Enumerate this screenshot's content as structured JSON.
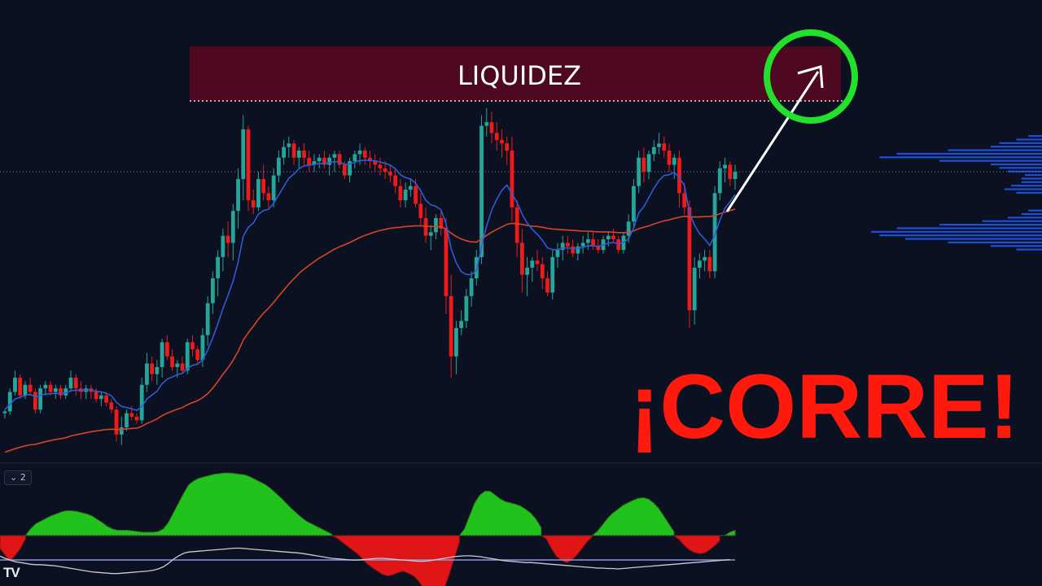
{
  "title_overlay": {
    "text": "¡CORRE!",
    "color": "#ff1a0d"
  },
  "liquidity_zone": {
    "label": "LIQUIDEZ",
    "fill": "#4e0820",
    "line_color": "#e6e6e6"
  },
  "target_circle_color": "#22e02b",
  "indicator_pane": {
    "badge": "⌄ 2"
  },
  "logo": {
    "text": "TV"
  },
  "colors": {
    "bull": "#26a69a",
    "bear": "#ef1a1a",
    "ema_fast": "#2f5bd8",
    "ema_slow": "#d8442a",
    "hist_pos": "#22c21c",
    "hist_neg": "#e01515",
    "osc_line": "#c8ccd6",
    "osc_ref": "#7e9bd8",
    "volume_profile": "#1e4fd8"
  },
  "chart_data": {
    "type": "candlestick",
    "x": [],
    "xlabel": "",
    "ylabel": "",
    "ylim": [
      0,
      100
    ],
    "candles": [
      [
        12,
        13,
        10.5,
        12.5
      ],
      [
        12.5,
        19,
        11.5,
        18
      ],
      [
        18,
        24,
        17,
        22
      ],
      [
        22,
        23,
        16,
        17
      ],
      [
        17,
        21,
        16,
        20
      ],
      [
        20,
        22,
        17,
        18
      ],
      [
        18,
        19,
        12,
        13
      ],
      [
        13,
        20,
        12,
        19
      ],
      [
        19,
        21,
        17,
        20
      ],
      [
        20,
        21,
        17,
        18
      ],
      [
        18,
        20,
        16,
        19
      ],
      [
        19,
        20,
        16,
        17
      ],
      [
        17,
        20,
        16,
        19
      ],
      [
        19,
        24,
        18,
        22
      ],
      [
        22,
        23,
        17,
        19
      ],
      [
        19,
        21,
        16,
        18
      ],
      [
        18,
        20,
        16,
        19
      ],
      [
        19,
        20,
        16,
        18
      ],
      [
        18,
        19,
        15,
        16
      ],
      [
        16,
        18,
        14,
        17
      ],
      [
        17,
        18,
        14,
        15
      ],
      [
        15,
        16,
        12,
        13
      ],
      [
        13,
        14,
        4,
        6
      ],
      [
        6,
        11,
        3,
        8
      ],
      [
        8,
        13,
        7,
        12
      ],
      [
        12,
        14,
        10,
        11
      ],
      [
        11,
        12,
        9,
        10
      ],
      [
        10,
        22,
        9,
        20
      ],
      [
        20,
        29,
        18,
        26
      ],
      [
        26,
        28,
        21,
        23
      ],
      [
        23,
        27,
        20,
        25
      ],
      [
        25,
        33,
        22,
        32
      ],
      [
        32,
        34,
        27,
        28
      ],
      [
        28,
        30,
        24,
        25
      ],
      [
        25,
        27,
        22,
        26
      ],
      [
        26,
        28,
        23,
        24
      ],
      [
        24,
        33,
        23,
        32
      ],
      [
        32,
        34,
        28,
        30
      ],
      [
        30,
        31,
        26,
        27
      ],
      [
        27,
        36,
        25,
        34
      ],
      [
        34,
        45,
        31,
        43
      ],
      [
        43,
        52,
        40,
        50
      ],
      [
        50,
        58,
        45,
        56
      ],
      [
        56,
        64,
        52,
        62
      ],
      [
        62,
        66,
        56,
        60
      ],
      [
        60,
        71,
        55,
        69
      ],
      [
        69,
        81,
        64,
        78
      ],
      [
        78,
        96,
        72,
        92
      ],
      [
        92,
        93,
        69,
        72
      ],
      [
        72,
        75,
        68,
        70
      ],
      [
        70,
        80,
        69,
        78
      ],
      [
        78,
        82,
        72,
        74
      ],
      [
        74,
        76,
        70,
        72
      ],
      [
        72,
        81,
        70,
        79
      ],
      [
        79,
        86,
        77,
        84
      ],
      [
        84,
        89,
        82,
        87
      ],
      [
        87,
        90,
        84,
        88
      ],
      [
        88,
        89,
        82,
        84
      ],
      [
        84,
        87,
        81,
        86
      ],
      [
        86,
        88,
        82,
        84
      ],
      [
        84,
        86,
        80,
        82
      ],
      [
        82,
        85,
        80,
        83
      ],
      [
        83,
        85,
        81,
        84
      ],
      [
        84,
        86,
        81,
        82
      ],
      [
        82,
        85,
        79,
        84
      ],
      [
        84,
        86,
        80,
        85
      ],
      [
        85,
        86,
        81,
        82
      ],
      [
        82,
        83,
        78,
        79
      ],
      [
        79,
        84,
        77,
        83
      ],
      [
        83,
        86,
        81,
        85
      ],
      [
        85,
        88,
        82,
        86
      ],
      [
        86,
        87,
        82,
        84
      ],
      [
        84,
        86,
        81,
        83
      ],
      [
        83,
        85,
        80,
        82
      ],
      [
        82,
        84,
        79,
        81
      ],
      [
        81,
        83,
        78,
        80
      ],
      [
        80,
        82,
        77,
        79
      ],
      [
        79,
        81,
        74,
        76
      ],
      [
        76,
        78,
        70,
        72
      ],
      [
        72,
        77,
        70,
        75
      ],
      [
        75,
        78,
        73,
        76
      ],
      [
        76,
        78,
        70,
        71
      ],
      [
        71,
        74,
        65,
        67
      ],
      [
        67,
        70,
        60,
        62
      ],
      [
        62,
        65,
        58,
        63
      ],
      [
        63,
        68,
        61,
        67
      ],
      [
        67,
        69,
        62,
        64
      ],
      [
        64,
        67,
        40,
        45
      ],
      [
        45,
        51,
        22,
        28
      ],
      [
        28,
        38,
        23,
        36
      ],
      [
        36,
        41,
        34,
        38
      ],
      [
        38,
        47,
        36,
        45
      ],
      [
        45,
        52,
        42,
        50
      ],
      [
        50,
        58,
        48,
        56
      ],
      [
        56,
        96,
        54,
        93
      ],
      [
        93,
        98,
        90,
        94
      ],
      [
        94,
        97,
        88,
        91
      ],
      [
        91,
        94,
        86,
        89
      ],
      [
        89,
        92,
        84,
        88
      ],
      [
        88,
        90,
        82,
        86
      ],
      [
        86,
        90,
        66,
        70
      ],
      [
        70,
        72,
        56,
        60
      ],
      [
        60,
        64,
        46,
        51
      ],
      [
        51,
        56,
        45,
        53
      ],
      [
        53,
        56,
        49,
        55
      ],
      [
        55,
        58,
        52,
        54
      ],
      [
        54,
        56,
        47,
        50
      ],
      [
        50,
        52,
        45,
        46
      ],
      [
        46,
        58,
        44,
        56
      ],
      [
        56,
        60,
        53,
        58
      ],
      [
        58,
        62,
        55,
        60
      ],
      [
        60,
        62,
        57,
        59
      ],
      [
        59,
        61,
        56,
        57
      ],
      [
        57,
        60,
        55,
        59
      ],
      [
        59,
        62,
        57,
        60
      ],
      [
        60,
        63,
        58,
        61
      ],
      [
        61,
        63,
        58,
        59
      ],
      [
        59,
        61,
        57,
        58
      ],
      [
        58,
        62,
        57,
        61
      ],
      [
        61,
        63,
        59,
        62
      ],
      [
        62,
        64,
        60,
        61
      ],
      [
        61,
        62,
        57,
        58
      ],
      [
        58,
        63,
        57,
        62
      ],
      [
        62,
        68,
        60,
        66
      ],
      [
        66,
        78,
        64,
        76
      ],
      [
        76,
        86,
        74,
        84
      ],
      [
        84,
        87,
        77,
        80
      ],
      [
        80,
        86,
        78,
        85
      ],
      [
        85,
        89,
        83,
        87
      ],
      [
        87,
        91,
        85,
        88
      ],
      [
        88,
        90,
        84,
        86
      ],
      [
        86,
        88,
        80,
        82
      ],
      [
        82,
        85,
        78,
        84
      ],
      [
        84,
        86,
        70,
        74
      ],
      [
        74,
        77,
        68,
        70
      ],
      [
        70,
        72,
        36,
        41
      ],
      [
        41,
        56,
        37,
        53
      ],
      [
        53,
        57,
        50,
        55
      ],
      [
        55,
        58,
        52,
        56
      ],
      [
        56,
        58,
        50,
        52
      ],
      [
        52,
        76,
        50,
        74
      ],
      [
        74,
        83,
        72,
        81
      ],
      [
        81,
        84,
        77,
        82
      ],
      [
        82,
        83,
        76,
        78
      ],
      [
        78,
        82,
        75,
        80
      ]
    ],
    "ema_fast": [
      13,
      14.5,
      16,
      16.5,
      17,
      17.3,
      16.6,
      17,
      17.4,
      17.5,
      17.6,
      17.5,
      17.7,
      18.3,
      18.5,
      18.4,
      18.5,
      18.5,
      18.2,
      18,
      17.6,
      16.9,
      15.1,
      13.9,
      13.6,
      13.2,
      12.8,
      13.8,
      16,
      17.1,
      18.2,
      20.3,
      21.6,
      22.2,
      22.9,
      23.2,
      24.6,
      25.5,
      25.8,
      27,
      29.8,
      33.3,
      37.2,
      41.5,
      45.2,
      49.2,
      54.6,
      61.9,
      64.4,
      65.6,
      68.1,
      69.1,
      69.5,
      71.1,
      73.5,
      75.9,
      78.2,
      79.4,
      80.9,
      81.7,
      81.9,
      82.1,
      82.4,
      82.3,
      82.6,
      82.9,
      82.8,
      82.1,
      82.2,
      82.7,
      83.2,
      83.3,
      83.3,
      83.1,
      82.8,
      82.4,
      81.9,
      80.9,
      79.2,
      78.4,
      78,
      76.8,
      74.7,
      72,
      70.7,
      70.3,
      69.3,
      65.4,
      58.3,
      54.4,
      51.9,
      51.1,
      51,
      52.2,
      58.9,
      64.8,
      69.2,
      72.3,
      74.8,
      76.3,
      73.8,
      71.4,
      68.1,
      65.6,
      63.8,
      62.4,
      60.7,
      58.6,
      58.1,
      58.1,
      58.5,
      58.6,
      58.4,
      58.5,
      58.7,
      59.2,
      59.2,
      59,
      59.4,
      59.9,
      60.1,
      59.7,
      60.1,
      61.2,
      64.2,
      68.4,
      70.2,
      72.8,
      75.4,
      77.6,
      79,
      79.2,
      79.9,
      78.3,
      76.2,
      68.5,
      65,
      62.6,
      61.1,
      59.3,
      62.2,
      66.4,
      69.8,
      71.6,
      73.6
    ],
    "ema_slow": [
      1,
      1.5,
      2,
      2.4,
      2.8,
      3.1,
      3.2,
      3.6,
      4,
      4.3,
      4.6,
      4.8,
      5.1,
      5.6,
      5.9,
      6.2,
      6.5,
      6.8,
      7,
      7.2,
      7.4,
      7.5,
      7.4,
      7.4,
      7.6,
      7.7,
      7.8,
      8.3,
      9.1,
      9.7,
      10.4,
      11.3,
      12,
      12.6,
      13.1,
      13.6,
      14.4,
      15,
      15.5,
      16.4,
      17.5,
      19.1,
      20.9,
      23,
      24.8,
      26.9,
      29.4,
      32.6,
      34.7,
      36.5,
      38.5,
      40.2,
      41.6,
      43.2,
      45,
      46.7,
      48.4,
      49.9,
      51.4,
      52.6,
      53.7,
      54.7,
      55.7,
      56.5,
      57.4,
      58.2,
      58.9,
      59.5,
      60.1,
      60.8,
      61.5,
      62.1,
      62.6,
      63.1,
      63.5,
      63.8,
      64.1,
      64.3,
      64.4,
      64.6,
      64.7,
      64.8,
      64.8,
      64.7,
      64.6,
      64.6,
      64.5,
      63.9,
      62.7,
      61.8,
      61.1,
      60.6,
      60.3,
      60.2,
      61.1,
      62.1,
      63,
      63.8,
      64.5,
      65.2,
      65.5,
      65.4,
      65.2,
      64.9,
      64.7,
      64.6,
      64.4,
      64.1,
      63.9,
      63.8,
      63.7,
      63.6,
      63.5,
      63.4,
      63.3,
      63.3,
      63.2,
      63.1,
      63.1,
      63.1,
      63,
      62.9,
      62.9,
      63,
      63.4,
      64,
      64.4,
      64.8,
      65.3,
      65.8,
      66.2,
      66.5,
      66.9,
      67.2,
      67.5,
      67.3,
      67.3,
      67.3,
      67.4,
      67.4,
      67.7,
      68.2,
      68.7,
      69.1,
      69.5
    ],
    "liquidity_level": 96,
    "current_price_line": 84,
    "histogram": [
      -0.2,
      -0.3,
      -0.4,
      -0.3,
      -0.2,
      -0.05,
      0.1,
      0.18,
      0.22,
      0.26,
      0.3,
      0.33,
      0.36,
      0.38,
      0.38,
      0.37,
      0.35,
      0.33,
      0.3,
      0.25,
      0.2,
      0.14,
      0.1,
      0.08,
      0.08,
      0.08,
      0.07,
      0.06,
      0.05,
      0.05,
      0.05,
      0.06,
      0.1,
      0.2,
      0.35,
      0.5,
      0.65,
      0.78,
      0.84,
      0.88,
      0.9,
      0.92,
      0.94,
      0.95,
      0.96,
      0.96,
      0.95,
      0.94,
      0.93,
      0.9,
      0.86,
      0.82,
      0.78,
      0.72,
      0.65,
      0.58,
      0.5,
      0.42,
      0.35,
      0.28,
      0.22,
      0.18,
      0.14,
      0.1,
      0.06,
      0.02,
      -0.04,
      -0.1,
      -0.16,
      -0.22,
      -0.28,
      -0.36,
      -0.44,
      -0.5,
      -0.55,
      -0.6,
      -0.62,
      -0.6,
      -0.57,
      -0.55,
      -0.58,
      -0.62,
      -0.7,
      -0.82,
      -0.95,
      -1,
      -0.96,
      -0.82,
      -0.6,
      -0.35,
      -0.1,
      0.1,
      0.3,
      0.5,
      0.62,
      0.68,
      0.68,
      0.62,
      0.56,
      0.52,
      0.5,
      0.48,
      0.45,
      0.4,
      0.34,
      0.25,
      0.12,
      -0.05,
      -0.2,
      -0.32,
      -0.38,
      -0.42,
      -0.38,
      -0.3,
      -0.2,
      -0.1,
      -0.02,
      0.06,
      0.16,
      0.26,
      0.34,
      0.4,
      0.46,
      0.5,
      0.54,
      0.57,
      0.58,
      0.56,
      0.5,
      0.42,
      0.3,
      0.18,
      0.06,
      -0.06,
      -0.15,
      -0.22,
      -0.26,
      -0.28,
      -0.27,
      -0.22,
      -0.16,
      -0.08,
      0.0,
      0.05,
      0.08
    ],
    "oscillator": [
      0.55,
      0.5,
      0.46,
      0.42,
      0.4,
      0.38,
      0.36,
      0.35,
      0.35,
      0.34,
      0.33,
      0.32,
      0.3,
      0.28,
      0.26,
      0.24,
      0.22,
      0.2,
      0.18,
      0.17,
      0.16,
      0.15,
      0.14,
      0.14,
      0.15,
      0.16,
      0.17,
      0.18,
      0.19,
      0.2,
      0.22,
      0.25,
      0.3,
      0.38,
      0.48,
      0.56,
      0.62,
      0.65,
      0.66,
      0.67,
      0.68,
      0.69,
      0.7,
      0.71,
      0.72,
      0.73,
      0.74,
      0.74,
      0.73,
      0.72,
      0.71,
      0.7,
      0.69,
      0.68,
      0.67,
      0.66,
      0.65,
      0.64,
      0.63,
      0.62,
      0.6,
      0.58,
      0.56,
      0.54,
      0.52,
      0.5,
      0.49,
      0.48,
      0.47,
      0.46,
      0.46,
      0.47,
      0.48,
      0.49,
      0.5,
      0.5,
      0.49,
      0.48,
      0.47,
      0.46,
      0.45,
      0.44,
      0.43,
      0.43,
      0.44,
      0.46,
      0.48,
      0.5,
      0.52,
      0.54,
      0.55,
      0.56,
      0.56,
      0.55,
      0.54,
      0.52,
      0.5,
      0.48,
      0.46,
      0.44,
      0.43,
      0.42,
      0.41,
      0.4,
      0.4,
      0.39,
      0.38,
      0.37,
      0.36,
      0.35,
      0.34,
      0.33,
      0.32,
      0.31,
      0.3,
      0.29,
      0.28,
      0.27,
      0.27,
      0.26,
      0.26,
      0.25,
      0.26,
      0.27,
      0.28,
      0.29,
      0.3,
      0.31,
      0.32,
      0.33,
      0.34,
      0.35,
      0.36,
      0.37,
      0.38,
      0.39,
      0.4,
      0.41,
      0.42,
      0.43,
      0.44,
      0.45,
      0.46,
      0.47
    ],
    "oscillator_ref": 0.5,
    "volume_profile": [
      [
        78,
        0.12
      ],
      [
        80,
        0.2
      ],
      [
        81,
        0.25
      ],
      [
        82,
        0.3
      ],
      [
        83,
        0.6
      ],
      [
        84,
        0.95
      ],
      [
        85,
        0.85
      ],
      [
        86,
        0.55
      ],
      [
        87,
        0.3
      ],
      [
        88,
        0.25
      ],
      [
        89,
        0.15
      ],
      [
        90,
        0.08
      ],
      [
        74,
        0.15
      ],
      [
        75,
        0.22
      ],
      [
        76,
        0.18
      ],
      [
        77,
        0.12
      ],
      [
        79,
        0.1
      ],
      [
        60,
        0.55
      ],
      [
        61,
        0.8
      ],
      [
        62,
        0.95
      ],
      [
        63,
        1.0
      ],
      [
        64,
        0.85
      ],
      [
        65,
        0.6
      ],
      [
        66,
        0.35
      ],
      [
        67,
        0.2
      ],
      [
        68,
        0.12
      ],
      [
        59,
        0.3
      ],
      [
        58,
        0.15
      ],
      [
        69,
        0.08
      ]
    ]
  }
}
